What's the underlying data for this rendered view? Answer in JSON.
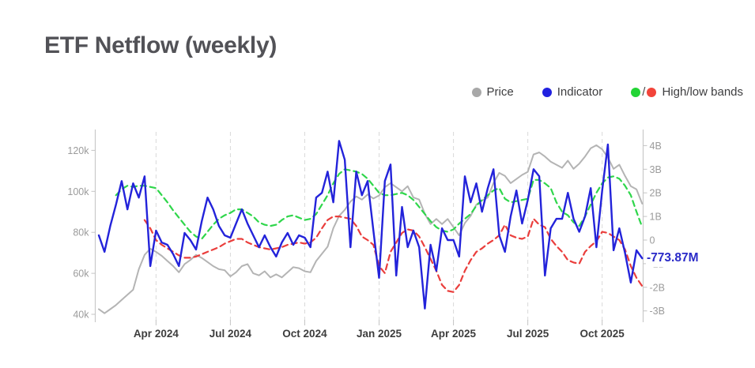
{
  "header": {
    "title": "ETF Netflow (weekly)"
  },
  "legend": {
    "bands_separator": "/",
    "items": [
      {
        "label": "Price",
        "color": "#a8a8a8"
      },
      {
        "label": "Indicator",
        "color": "#2121e0"
      },
      {
        "label": "High/low bands",
        "color_high": "#23d435",
        "color_low": "#f2443a"
      }
    ]
  },
  "current_value": {
    "label": "-773.87M",
    "value_billions": -0.77387,
    "color": "#2a2ac8"
  },
  "chart_data": {
    "type": "line",
    "title": "ETF Netflow (weekly)",
    "legend_position": "top-right",
    "grid": {
      "vertical_dashed": true,
      "horizontal": false
    },
    "x_axis": {
      "unit": "week",
      "range_note": "weekly points from late Jan 2024 to mid Nov 2025",
      "total_weeks": 96,
      "ticks": [
        {
          "label": "Apr 2024",
          "week_index": 10
        },
        {
          "label": "Jul 2024",
          "week_index": 23
        },
        {
          "label": "Oct 2024",
          "week_index": 36
        },
        {
          "label": "Jan 2025",
          "week_index": 49
        },
        {
          "label": "Apr 2025",
          "week_index": 62
        },
        {
          "label": "Jul 2025",
          "week_index": 75
        },
        {
          "label": "Oct 2025",
          "week_index": 88
        }
      ]
    },
    "y_left": {
      "unit": "price (thousand USD)",
      "ticks": [
        {
          "label": "120k",
          "value": 120
        },
        {
          "label": "100k",
          "value": 100
        },
        {
          "label": "80k",
          "value": 80
        },
        {
          "label": "60k",
          "value": 60
        },
        {
          "label": "40k",
          "value": 40
        }
      ]
    },
    "y_right": {
      "unit": "netflow (billion USD)",
      "ticks": [
        {
          "label": "4B",
          "value": 4
        },
        {
          "label": "3B",
          "value": 3
        },
        {
          "label": "2B",
          "value": 2
        },
        {
          "label": "1B",
          "value": 1
        },
        {
          "label": "0",
          "value": 0
        },
        {
          "label": "-1B",
          "value": -1
        },
        {
          "label": "-2B",
          "value": -2
        },
        {
          "label": "-3B",
          "value": -3
        }
      ]
    },
    "series": [
      {
        "name": "Price",
        "axis": "left",
        "style": "solid",
        "color": "#b4b4b4",
        "values": [
          42.5,
          40.5,
          42.5,
          44.5,
          47,
          49.5,
          52,
          62,
          69,
          72,
          70.5,
          68.5,
          66,
          63.5,
          60.5,
          64.5,
          66.5,
          69,
          67.5,
          65.5,
          63.5,
          62,
          61.5,
          58.5,
          60.5,
          63.5,
          64.5,
          60,
          59,
          61,
          58,
          59.5,
          58,
          60.5,
          63,
          62.5,
          61,
          60.5,
          66,
          69.5,
          73,
          82,
          88,
          91,
          95,
          97.5,
          96,
          98.5,
          96.5,
          98,
          102,
          104,
          102,
          100,
          102.5,
          97,
          96,
          89,
          84,
          86.5,
          84,
          86.5,
          82.5,
          78.5,
          84.5,
          88,
          93.5,
          95.5,
          97,
          104,
          109,
          107.5,
          104,
          106,
          108,
          109.5,
          118,
          119,
          117,
          114.5,
          113,
          111.5,
          115,
          111,
          113.5,
          117,
          121,
          122.5,
          120.5,
          116.5,
          111,
          113,
          107.5,
          102.5,
          101,
          94
        ]
      },
      {
        "name": "High band",
        "axis": "right",
        "style": "dashed",
        "color": "#2fd64b",
        "values": [
          null,
          null,
          null,
          1.9,
          2.15,
          2.3,
          2.25,
          2.3,
          2.3,
          2.25,
          2.2,
          1.9,
          1.6,
          1.25,
          0.95,
          0.65,
          0.35,
          0.15,
          0.05,
          0.35,
          0.65,
          0.9,
          1.05,
          1.15,
          1.3,
          1.3,
          1.15,
          1.0,
          0.75,
          0.65,
          0.6,
          0.65,
          0.85,
          1.0,
          1.05,
          0.95,
          0.85,
          0.9,
          1.1,
          1.5,
          1.9,
          2.4,
          2.8,
          3.0,
          2.95,
          2.9,
          2.8,
          2.6,
          2.3,
          2.0,
          1.9,
          1.9,
          1.95,
          2.0,
          1.9,
          1.7,
          1.4,
          1.1,
          0.8,
          0.55,
          0.4,
          0.35,
          0.45,
          0.7,
          0.9,
          1.1,
          1.45,
          1.7,
          1.9,
          2.1,
          2.2,
          1.75,
          1.6,
          1.65,
          1.7,
          1.75,
          2.55,
          2.55,
          2.4,
          2.2,
          1.6,
          1.2,
          1.05,
          0.75,
          0.6,
          1.0,
          1.5,
          2.0,
          2.4,
          2.65,
          2.7,
          2.6,
          2.3,
          1.9,
          1.2,
          0.55
        ]
      },
      {
        "name": "Low band",
        "axis": "right",
        "style": "dashed",
        "color": "#ea3e3c",
        "values": [
          null,
          null,
          null,
          null,
          null,
          null,
          null,
          null,
          0.85,
          0.5,
          0.0,
          -0.2,
          -0.35,
          -0.5,
          -0.65,
          -0.75,
          -0.75,
          -0.7,
          -0.6,
          -0.5,
          -0.4,
          -0.3,
          -0.15,
          -0.05,
          0.05,
          0.05,
          -0.1,
          -0.2,
          -0.3,
          -0.35,
          -0.4,
          -0.35,
          -0.3,
          -0.2,
          -0.15,
          -0.1,
          -0.15,
          -0.1,
          0.1,
          0.5,
          0.85,
          1.0,
          1.0,
          0.95,
          0.9,
          0.6,
          0.15,
          0.0,
          -0.2,
          -1.1,
          -1.4,
          -0.5,
          -0.1,
          0.3,
          0.45,
          0.4,
          0.15,
          -0.3,
          -0.8,
          -1.3,
          -1.9,
          -2.15,
          -2.2,
          -1.9,
          -1.3,
          -0.85,
          -0.5,
          -0.35,
          -0.15,
          0.0,
          0.2,
          0.65,
          0.2,
          0.1,
          0.05,
          0.15,
          0.9,
          0.65,
          0.55,
          0.05,
          -0.25,
          -0.5,
          -0.85,
          -0.95,
          -1.0,
          -0.5,
          -0.25,
          -0.05,
          0.35,
          0.3,
          0.15,
          0.0,
          -0.4,
          -1.1,
          -1.6,
          -1.95
        ]
      },
      {
        "name": "Indicator",
        "axis": "right",
        "style": "solid",
        "color": "#2323da",
        "values": [
          0.2,
          -0.5,
          0.6,
          1.5,
          2.5,
          1.3,
          2.4,
          1.8,
          2.7,
          -1.1,
          0.4,
          -0.1,
          -0.2,
          -0.6,
          -1.1,
          0.3,
          0.0,
          -0.4,
          0.8,
          1.8,
          1.3,
          0.6,
          0.2,
          0.1,
          0.7,
          1.3,
          0.7,
          0.2,
          -0.3,
          0.2,
          -0.3,
          -0.7,
          -0.1,
          0.3,
          -0.2,
          0.2,
          0.1,
          -0.3,
          1.8,
          2.0,
          2.9,
          1.6,
          4.2,
          3.4,
          -0.3,
          2.9,
          1.9,
          2.5,
          0.4,
          -1.6,
          2.5,
          3.2,
          -1.5,
          1.4,
          -0.3,
          0.4,
          -0.3,
          -2.9,
          -0.2,
          -1.3,
          0.5,
          0.0,
          0.0,
          -0.7,
          2.7,
          1.6,
          2.4,
          1.2,
          2.2,
          3.0,
          0.2,
          -0.5,
          1.0,
          2.1,
          0.7,
          1.7,
          3.0,
          2.7,
          -1.5,
          0.5,
          0.9,
          0.9,
          2.0,
          0.9,
          0.35,
          1.0,
          2.2,
          -0.3,
          2.1,
          4.05,
          -0.43,
          0.5,
          -0.55,
          -1.8,
          -0.43,
          -0.774
        ]
      }
    ]
  }
}
